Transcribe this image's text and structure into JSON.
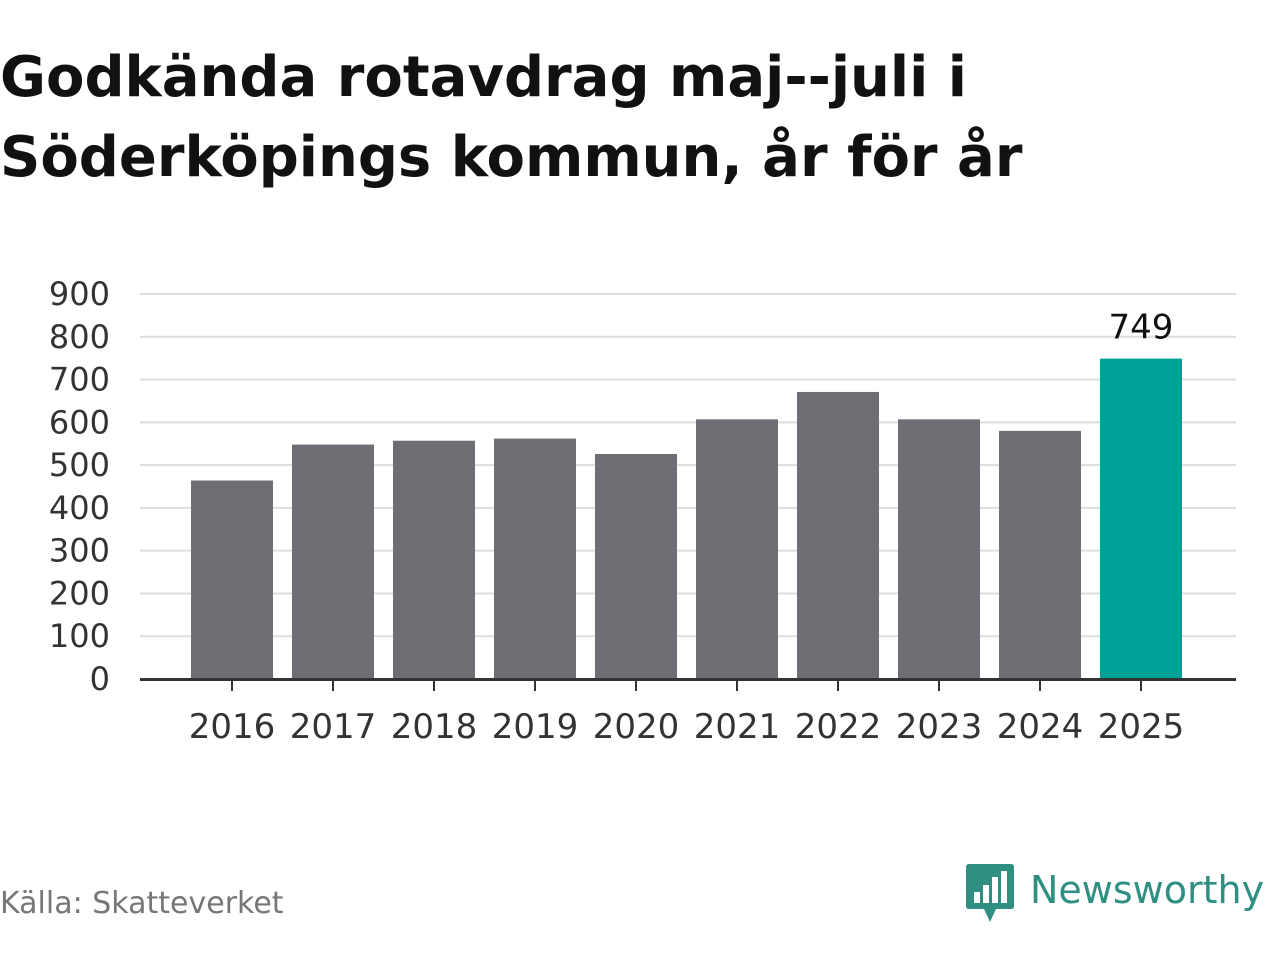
{
  "title": "Godkända rotavdrag maj--juli i Söderköpings kommun, år för år",
  "source": "Källa: Skatteverket",
  "brand": {
    "name": "Newsworthy",
    "icon": "newsworthy-logo-icon"
  },
  "colors": {
    "bar": "#6e6d73",
    "highlight": "#00a297",
    "grid": "#dddddd",
    "axis": "#333333",
    "brand": "#2f8f83"
  },
  "chart_data": {
    "type": "bar",
    "title": "Godkända rotavdrag maj--juli i Söderköpings kommun, år för år",
    "xlabel": "",
    "ylabel": "",
    "categories": [
      "2016",
      "2017",
      "2018",
      "2019",
      "2020",
      "2021",
      "2022",
      "2023",
      "2024",
      "2025"
    ],
    "values": [
      464,
      548,
      557,
      562,
      526,
      607,
      671,
      607,
      580,
      749
    ],
    "highlight_index": 9,
    "data_labels": [
      {
        "category": "2025",
        "text": "749"
      }
    ],
    "ylim": [
      0,
      900
    ],
    "yticks": [
      0,
      100,
      200,
      300,
      400,
      500,
      600,
      700,
      800,
      900
    ],
    "grid": true,
    "legend": "none"
  }
}
